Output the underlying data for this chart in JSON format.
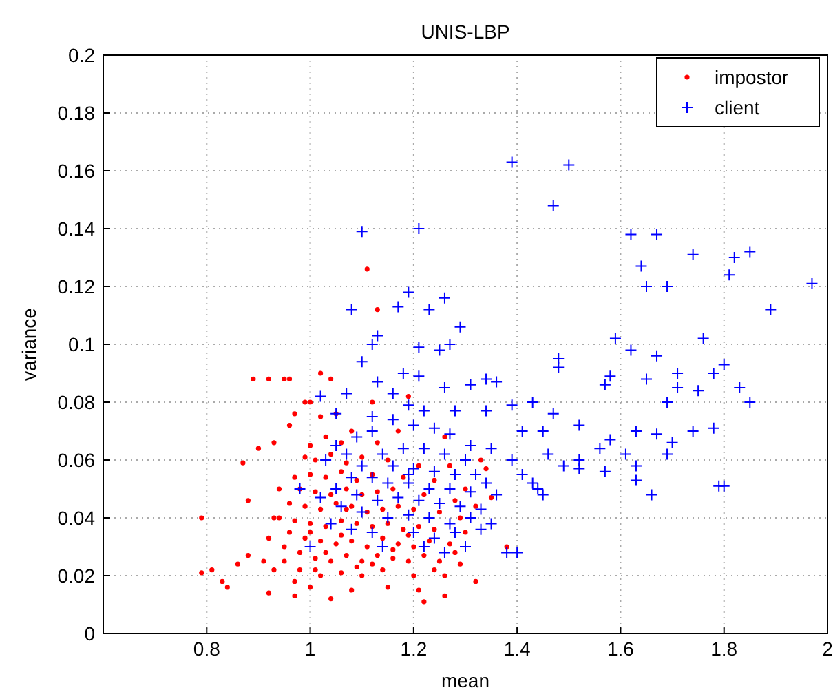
{
  "chart_data": {
    "type": "scatter",
    "title": "UNIS-LBP",
    "xlabel": "mean",
    "ylabel": "variance",
    "xlim": [
      0.6,
      2
    ],
    "ylim": [
      0,
      0.2
    ],
    "xticks": [
      0.8,
      1,
      1.2,
      1.4,
      1.6,
      1.8,
      2
    ],
    "yticks": [
      0,
      0.02,
      0.04,
      0.06,
      0.08,
      0.1,
      0.12,
      0.14,
      0.16,
      0.18,
      0.2
    ],
    "grid": true,
    "legend": "top right",
    "series": [
      {
        "name": "impostor",
        "color": "#ff0000",
        "marker": "circle",
        "x": [
          0.79,
          0.79,
          0.81,
          0.83,
          0.84,
          0.86,
          0.88,
          0.88,
          0.87,
          0.89,
          0.92,
          0.93,
          0.95,
          0.96,
          0.99,
          1.0,
          1.11,
          1.13,
          1.19,
          0.9,
          0.93,
          0.96,
          0.97,
          1.02,
          1.05,
          1.08,
          0.99,
          0.94,
          0.97,
          0.92,
          0.91,
          0.92,
          0.97,
          1.0,
          1.04,
          1.08,
          1.15,
          1.22,
          1.26,
          1.32,
          1.34,
          1.29,
          1.26,
          1.2,
          1.14,
          1.1,
          1.06,
          1.02,
          0.98,
          0.95,
          0.95,
          0.98,
          1.01,
          1.04,
          1.07,
          1.1,
          1.13,
          1.16,
          1.19,
          1.22,
          1.25,
          0.96,
          0.99,
          1.02,
          1.05,
          1.08,
          1.11,
          1.14,
          1.17,
          1.2,
          1.23,
          1.27,
          0.94,
          0.97,
          1.0,
          1.03,
          1.06,
          1.09,
          1.12,
          1.15,
          1.18,
          1.21,
          1.24,
          1.3,
          0.96,
          0.99,
          1.02,
          1.05,
          1.08,
          1.11,
          1.14,
          1.17,
          1.2,
          1.25,
          1.29,
          0.98,
          1.01,
          1.04,
          1.07,
          1.1,
          1.13,
          1.16,
          1.22,
          1.28,
          1.32,
          1.0,
          1.03,
          1.06,
          1.09,
          1.12,
          1.18,
          1.24,
          1.3,
          1.01,
          1.04,
          1.07,
          1.1,
          1.15,
          1.21,
          1.27,
          1.35,
          1.38,
          1.03,
          1.06,
          1.13,
          1.17,
          1.26,
          1.33,
          1.0,
          1.12,
          1.02,
          1.04,
          1.01,
          1.03,
          1.06,
          1.09,
          1.12,
          1.16,
          1.19,
          0.93,
          0.97,
          1.0,
          1.07,
          1.24,
          1.21,
          1.28
        ],
        "values": [
          0.04,
          0.021,
          0.022,
          0.018,
          0.016,
          0.024,
          0.027,
          0.046,
          0.059,
          0.088,
          0.088,
          0.04,
          0.088,
          0.088,
          0.08,
          0.08,
          0.126,
          0.112,
          0.082,
          0.064,
          0.066,
          0.072,
          0.076,
          0.075,
          0.076,
          0.07,
          0.061,
          0.05,
          0.054,
          0.033,
          0.025,
          0.014,
          0.013,
          0.016,
          0.012,
          0.015,
          0.016,
          0.011,
          0.013,
          0.018,
          0.057,
          0.024,
          0.02,
          0.02,
          0.022,
          0.02,
          0.021,
          0.02,
          0.022,
          0.025,
          0.03,
          0.028,
          0.026,
          0.025,
          0.027,
          0.025,
          0.027,
          0.026,
          0.025,
          0.027,
          0.025,
          0.035,
          0.033,
          0.032,
          0.031,
          0.032,
          0.03,
          0.033,
          0.031,
          0.03,
          0.032,
          0.031,
          0.04,
          0.039,
          0.038,
          0.037,
          0.039,
          0.038,
          0.037,
          0.038,
          0.036,
          0.037,
          0.036,
          0.035,
          0.045,
          0.044,
          0.043,
          0.045,
          0.044,
          0.042,
          0.043,
          0.044,
          0.043,
          0.042,
          0.04,
          0.05,
          0.049,
          0.048,
          0.05,
          0.048,
          0.049,
          0.05,
          0.048,
          0.046,
          0.044,
          0.055,
          0.054,
          0.056,
          0.053,
          0.055,
          0.054,
          0.053,
          0.05,
          0.06,
          0.062,
          0.059,
          0.061,
          0.06,
          0.058,
          0.058,
          0.047,
          0.03,
          0.068,
          0.066,
          0.066,
          0.07,
          0.068,
          0.06,
          0.065,
          0.08,
          0.09,
          0.088,
          0.022,
          0.028,
          0.034,
          0.023,
          0.024,
          0.029,
          0.034,
          0.022,
          0.018,
          0.035,
          0.043,
          0.022,
          0.015,
          0.028
        ]
      },
      {
        "name": "client",
        "color": "#0000ff",
        "marker": "cross",
        "x": [
          1.39,
          1.5,
          1.47,
          1.1,
          1.21,
          1.62,
          1.67,
          1.64,
          1.74,
          1.82,
          1.85,
          1.97,
          1.81,
          1.19,
          1.26,
          1.17,
          1.08,
          1.23,
          1.65,
          1.69,
          1.89,
          1.59,
          1.76,
          1.62,
          1.67,
          1.13,
          1.29,
          1.12,
          1.1,
          1.21,
          1.25,
          1.27,
          1.18,
          1.21,
          1.48,
          1.48,
          1.58,
          1.65,
          1.71,
          1.78,
          1.8,
          1.83,
          1.75,
          1.85,
          1.57,
          1.71,
          1.69,
          1.43,
          1.47,
          1.39,
          1.36,
          1.34,
          1.31,
          1.34,
          1.26,
          1.13,
          1.16,
          1.07,
          1.02,
          1.19,
          1.22,
          1.28,
          1.05,
          1.12,
          1.45,
          1.41,
          1.52,
          1.58,
          1.63,
          1.67,
          1.7,
          1.74,
          1.69,
          1.78,
          1.56,
          1.61,
          1.63,
          1.57,
          1.52,
          1.46,
          1.49,
          1.63,
          1.66,
          1.79,
          1.8,
          1.43,
          1.44,
          1.45,
          1.52,
          1.41,
          1.39,
          1.35,
          1.31,
          1.3,
          1.27,
          1.24,
          1.2,
          1.16,
          1.12,
          1.09,
          1.05,
          1.03,
          1.07,
          1.1,
          1.14,
          1.18,
          1.22,
          1.26,
          1.16,
          1.2,
          1.24,
          1.28,
          1.32,
          1.08,
          1.12,
          1.15,
          1.19,
          1.23,
          1.27,
          1.31,
          1.34,
          1.36,
          1.05,
          1.09,
          1.13,
          1.17,
          1.21,
          1.25,
          1.29,
          1.33,
          1.02,
          1.06,
          1.1,
          1.15,
          1.19,
          1.23,
          1.27,
          1.31,
          1.35,
          1.04,
          1.08,
          1.12,
          1.2,
          1.24,
          1.28,
          1.33,
          1.22,
          1.26,
          1.14,
          1.3,
          1.38,
          1.4,
          1.0,
          0.98,
          1.19
        ],
        "values": [
          0.163,
          0.162,
          0.148,
          0.139,
          0.14,
          0.138,
          0.138,
          0.127,
          0.131,
          0.13,
          0.132,
          0.121,
          0.124,
          0.118,
          0.116,
          0.113,
          0.112,
          0.112,
          0.12,
          0.12,
          0.112,
          0.102,
          0.102,
          0.098,
          0.096,
          0.103,
          0.106,
          0.1,
          0.094,
          0.099,
          0.098,
          0.1,
          0.09,
          0.089,
          0.095,
          0.092,
          0.089,
          0.088,
          0.09,
          0.09,
          0.093,
          0.085,
          0.084,
          0.08,
          0.086,
          0.085,
          0.08,
          0.08,
          0.076,
          0.079,
          0.087,
          0.088,
          0.086,
          0.077,
          0.085,
          0.087,
          0.083,
          0.083,
          0.082,
          0.079,
          0.077,
          0.077,
          0.076,
          0.075,
          0.07,
          0.07,
          0.072,
          0.067,
          0.07,
          0.069,
          0.066,
          0.07,
          0.062,
          0.071,
          0.064,
          0.062,
          0.058,
          0.056,
          0.06,
          0.062,
          0.058,
          0.053,
          0.048,
          0.051,
          0.051,
          0.052,
          0.05,
          0.048,
          0.057,
          0.055,
          0.06,
          0.064,
          0.065,
          0.06,
          0.069,
          0.071,
          0.072,
          0.074,
          0.07,
          0.068,
          0.065,
          0.06,
          0.062,
          0.058,
          0.062,
          0.064,
          0.064,
          0.062,
          0.058,
          0.057,
          0.056,
          0.055,
          0.055,
          0.054,
          0.054,
          0.052,
          0.052,
          0.05,
          0.05,
          0.049,
          0.052,
          0.048,
          0.05,
          0.048,
          0.046,
          0.047,
          0.046,
          0.045,
          0.044,
          0.043,
          0.047,
          0.044,
          0.042,
          0.04,
          0.041,
          0.04,
          0.038,
          0.04,
          0.038,
          0.038,
          0.036,
          0.035,
          0.035,
          0.033,
          0.035,
          0.036,
          0.03,
          0.028,
          0.03,
          0.03,
          0.028,
          0.028,
          0.03,
          0.05,
          0.055
        ]
      }
    ]
  }
}
